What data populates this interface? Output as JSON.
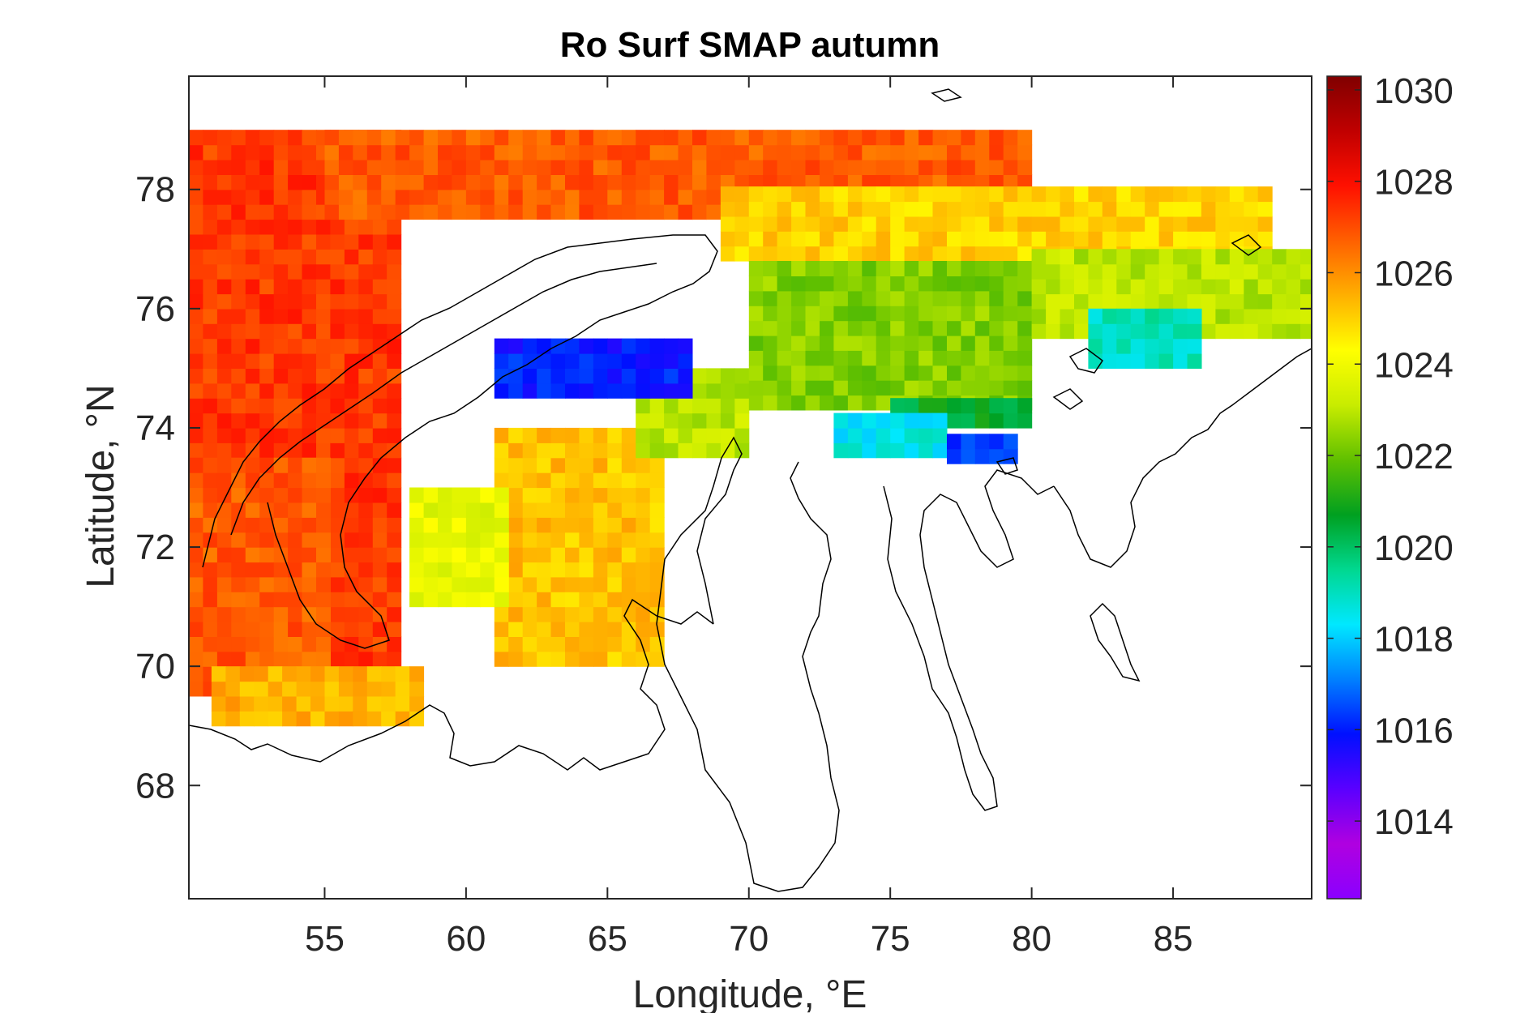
{
  "chart_data": {
    "type": "heatmap",
    "title": "Ro Surf SMAP autumn",
    "xlabel": "Longitude, °E",
    "ylabel": "Latitude, °N",
    "xlim": [
      50.2,
      89.9
    ],
    "ylim": [
      66.1,
      79.9
    ],
    "x_ticks": [
      55,
      60,
      65,
      70,
      75,
      80,
      85
    ],
    "y_ticks": [
      68,
      70,
      72,
      74,
      76,
      78
    ],
    "x_tick_labels": [
      "55",
      "60",
      "65",
      "70",
      "75",
      "80",
      "85"
    ],
    "y_tick_labels": [
      "68",
      "70",
      "72",
      "74",
      "76",
      "78"
    ],
    "colorbar": {
      "range": [
        1012.3,
        1030.3
      ],
      "ticks": [
        1014,
        1016,
        1018,
        1020,
        1022,
        1024,
        1026,
        1028,
        1030
      ],
      "tick_labels": [
        "1014",
        "1016",
        "1018",
        "1020",
        "1022",
        "1024",
        "1026",
        "1028",
        "1030"
      ],
      "placement": "right",
      "colormap": [
        "#8a00ff",
        "#b000e0",
        "#5a00ff",
        "#0010ff",
        "#0080ff",
        "#00e8ff",
        "#00d890",
        "#00a020",
        "#60c000",
        "#c8ec00",
        "#ffff00",
        "#ffb000",
        "#ff6000",
        "#ff1000",
        "#c00000",
        "#800000"
      ]
    },
    "grid": false,
    "regions_density_kg_m3": [
      {
        "lon": [
          50.2,
          57.5
        ],
        "lat": [
          69.5,
          78.8
        ],
        "value": 1027.3
      },
      {
        "lon": [
          50.2,
          55.0
        ],
        "lat": [
          69.5,
          73.5
        ],
        "value": 1026.8
      },
      {
        "lon": [
          51.0,
          58.5
        ],
        "lat": [
          69.0,
          70.0
        ],
        "value": 1025.5
      },
      {
        "lon": [
          55.0,
          80.0
        ],
        "lat": [
          77.5,
          78.8
        ],
        "value": 1026.8
      },
      {
        "lon": [
          69.0,
          88.5
        ],
        "lat": [
          76.8,
          77.9
        ],
        "value": 1025.0
      },
      {
        "lon": [
          61.0,
          67.0
        ],
        "lat": [
          70.0,
          74.0
        ],
        "value": 1025.2
      },
      {
        "lon": [
          58.0,
          61.5
        ],
        "lat": [
          71.0,
          73.0
        ],
        "value": 1023.8
      },
      {
        "lon": [
          66.0,
          70.0
        ],
        "lat": [
          73.5,
          75.0
        ],
        "value": 1023.0
      },
      {
        "lon": [
          70.0,
          80.0
        ],
        "lat": [
          74.3,
          76.8
        ],
        "value": 1022.3
      },
      {
        "lon": [
          80.0,
          89.9
        ],
        "lat": [
          75.5,
          77.0
        ],
        "value": 1023.0
      },
      {
        "lon": [
          75.0,
          80.0
        ],
        "lat": [
          74.0,
          74.5
        ],
        "value": 1020.5
      },
      {
        "lon": [
          73.0,
          77.0
        ],
        "lat": [
          73.5,
          74.2
        ],
        "value": 1018.5
      },
      {
        "lon": [
          77.0,
          79.5
        ],
        "lat": [
          73.4,
          73.9
        ],
        "value": 1016.5
      },
      {
        "lon": [
          61.0,
          68.0
        ],
        "lat": [
          74.5,
          75.5
        ],
        "value": 1016.0
      },
      {
        "lon": [
          82.0,
          86.0
        ],
        "lat": [
          75.0,
          76.0
        ],
        "value": 1019.0
      }
    ]
  }
}
